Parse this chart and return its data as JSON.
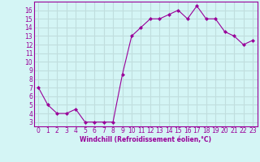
{
  "x": [
    0,
    1,
    2,
    3,
    4,
    5,
    6,
    7,
    8,
    9,
    10,
    11,
    12,
    13,
    14,
    15,
    16,
    17,
    18,
    19,
    20,
    21,
    22,
    23
  ],
  "y": [
    7.0,
    5.0,
    4.0,
    4.0,
    4.5,
    3.0,
    3.0,
    3.0,
    3.0,
    8.5,
    13.0,
    14.0,
    15.0,
    15.0,
    15.5,
    16.0,
    15.0,
    16.5,
    15.0,
    15.0,
    13.5,
    13.0,
    12.0,
    12.5
  ],
  "xlabel": "Windchill (Refroidissement éolien,°C)",
  "ylim": [
    2.5,
    17.0
  ],
  "xlim": [
    -0.5,
    23.5
  ],
  "line_color": "#990099",
  "marker": "D",
  "marker_size": 2.0,
  "bg_color": "#d4f5f5",
  "grid_color": "#c0dede",
  "tick_color": "#990099",
  "label_color": "#990099",
  "yticks": [
    3,
    4,
    5,
    6,
    7,
    8,
    9,
    10,
    11,
    12,
    13,
    14,
    15,
    16
  ],
  "xticks": [
    0,
    1,
    2,
    3,
    4,
    5,
    6,
    7,
    8,
    9,
    10,
    11,
    12,
    13,
    14,
    15,
    16,
    17,
    18,
    19,
    20,
    21,
    22,
    23
  ],
  "tick_fontsize": 5.5,
  "xlabel_fontsize": 5.5
}
